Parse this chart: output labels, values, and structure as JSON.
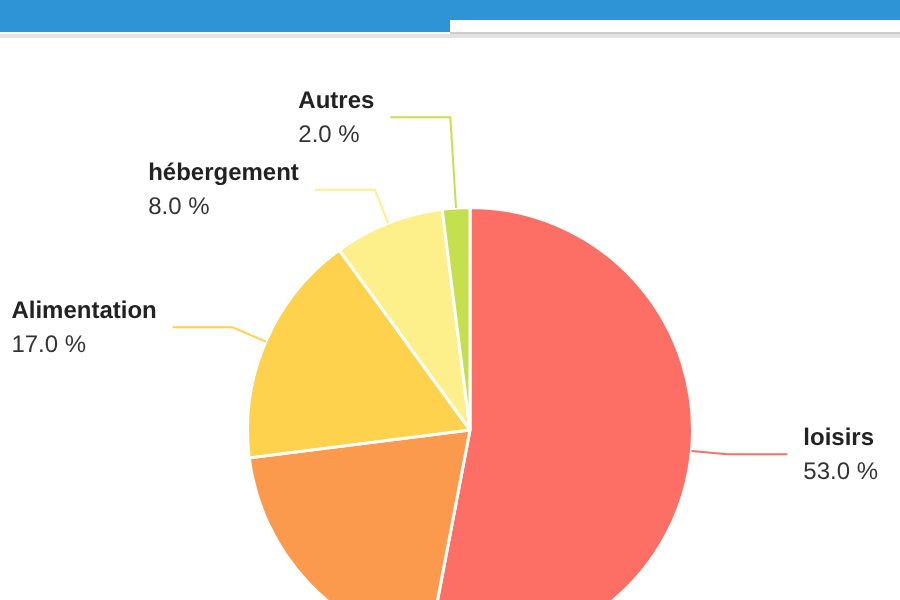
{
  "chart_data": {
    "type": "pie",
    "categories": [
      "loisirs",
      null,
      "Alimentation",
      "hébergement",
      "Autres"
    ],
    "values": [
      53,
      20,
      17,
      8,
      2
    ],
    "colors": [
      "#fd6f64",
      "#fb9a4c",
      "#fed24c",
      "#fdf08b",
      "#c5e04d"
    ],
    "value_labels": [
      "53.0 %",
      null,
      "17.0 %",
      "8.0 %",
      "2.0 %"
    ]
  }
}
